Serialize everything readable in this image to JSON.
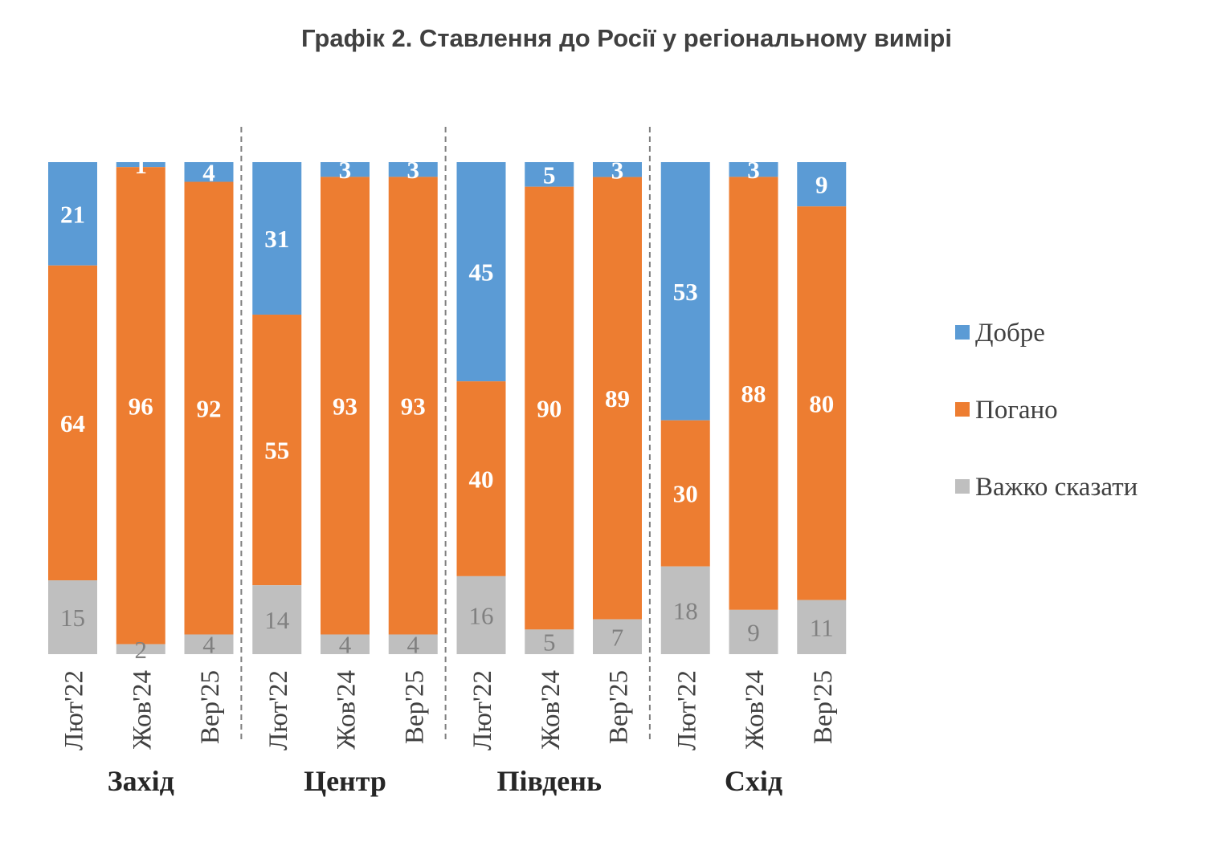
{
  "chart_data": {
    "type": "bar",
    "stacked": true,
    "percent_stacked": true,
    "title": "Графік 2. Ставлення до Росії у регіональному вимірі",
    "groups": [
      {
        "name": "Захід",
        "categories": [
          "Лют'22",
          "Жов'24",
          "Вер'25"
        ]
      },
      {
        "name": "Центр",
        "categories": [
          "Лют'22",
          "Жов'24",
          "Вер'25"
        ]
      },
      {
        "name": "Південь",
        "categories": [
          "Лют'22",
          "Жов'24",
          "Вер'25"
        ]
      },
      {
        "name": "Схід",
        "categories": [
          "Лют'22",
          "Жов'24",
          "Вер'25"
        ]
      }
    ],
    "series": [
      {
        "name": "Добре",
        "color": "#5B9BD5",
        "values": [
          21,
          1,
          4,
          31,
          3,
          3,
          45,
          5,
          3,
          53,
          3,
          9
        ]
      },
      {
        "name": "Погано",
        "color": "#ED7D31",
        "values": [
          64,
          96,
          92,
          55,
          93,
          93,
          40,
          90,
          89,
          30,
          88,
          80
        ]
      },
      {
        "name": "Важко сказати",
        "color": "#BFBFBF",
        "values": [
          15,
          2,
          4,
          14,
          4,
          4,
          16,
          5,
          7,
          18,
          9,
          11
        ]
      }
    ],
    "legend": "right",
    "grid": false
  }
}
